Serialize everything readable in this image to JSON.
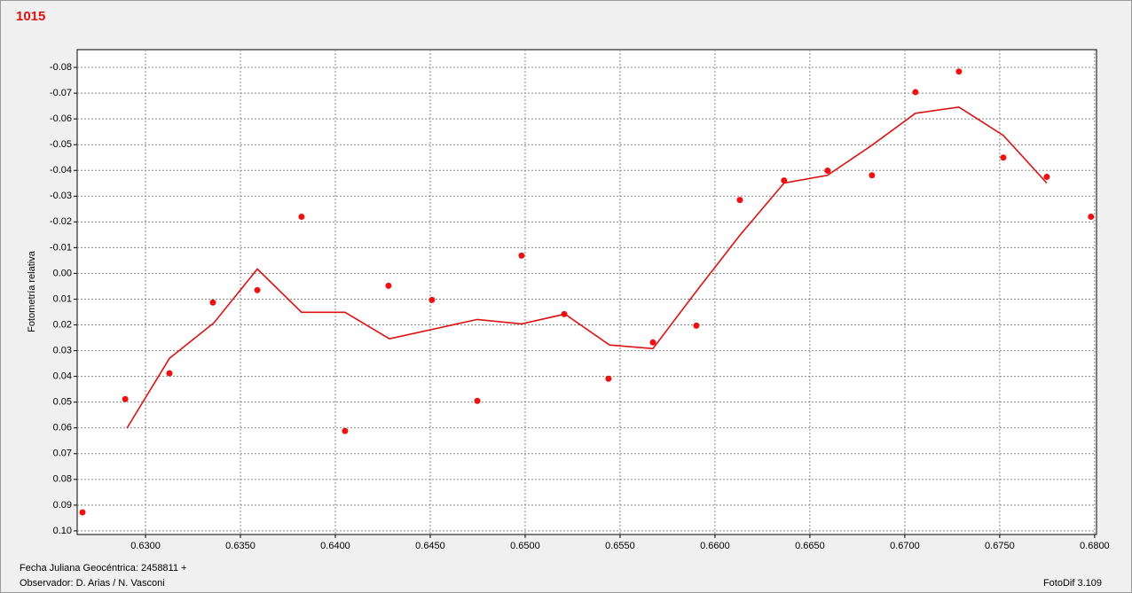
{
  "chart_data": {
    "type": "scatter",
    "title": "1015",
    "ylabel": "Fotometría relativa",
    "xlabel": "Fecha Juliana Geocéntrica: 2458811 +",
    "observer": "Observador: D. Arias / N. Vasconi",
    "software": "FotoDif 3.109",
    "xlim": [
      0.6264,
      0.6801
    ],
    "ylim": [
      0.1014,
      -0.0869
    ],
    "grid": true,
    "xticks": [
      {
        "value": 0.63,
        "label": "0.6300"
      },
      {
        "value": 0.635,
        "label": "0.6350"
      },
      {
        "value": 0.64,
        "label": "0.6400"
      },
      {
        "value": 0.645,
        "label": "0.6450"
      },
      {
        "value": 0.65,
        "label": "0.6500"
      },
      {
        "value": 0.655,
        "label": "0.6550"
      },
      {
        "value": 0.66,
        "label": "0.6600"
      },
      {
        "value": 0.665,
        "label": "0.6650"
      },
      {
        "value": 0.67,
        "label": "0.6700"
      },
      {
        "value": 0.675,
        "label": "0.6750"
      },
      {
        "value": 0.68,
        "label": "0.6800"
      }
    ],
    "yticks": [
      -0.08,
      -0.07,
      -0.06,
      -0.05,
      -0.04,
      -0.03,
      -0.02,
      -0.01,
      {
        "value": 0,
        "label": "0.00"
      },
      0.01,
      0.02,
      0.03,
      0.04,
      0.05,
      0.06,
      0.07,
      0.08,
      0.09,
      {
        "value": 0.1,
        "label": "0.10"
      }
    ],
    "series": [
      {
        "style": "markers",
        "color": "#ee1111",
        "x": [
          0.62668,
          0.62893,
          0.63126,
          0.63355,
          0.63589,
          0.63822,
          0.64051,
          0.6428,
          0.64509,
          0.64748,
          0.64981,
          0.65206,
          0.65439,
          0.65673,
          0.65902,
          0.66131,
          0.66364,
          0.66593,
          0.66827,
          0.67056,
          0.67285,
          0.67519,
          0.67748,
          0.67981
        ],
        "values": [
          0.0928,
          0.0488,
          0.0388,
          0.0113,
          0.0065,
          -0.022,
          0.0612,
          0.0048,
          0.0103,
          0.0495,
          -0.0069,
          0.0158,
          0.0409,
          0.0268,
          0.0203,
          -0.0285,
          -0.0361,
          -0.0399,
          -0.0381,
          -0.0704,
          -0.0784,
          -0.045,
          -0.0375,
          -0.022
        ]
      },
      {
        "style": "line",
        "color": "#dd1111",
        "x": [
          0.62902,
          0.63126,
          0.6336,
          0.63589,
          0.63822,
          0.64051,
          0.64285,
          0.64748,
          0.64981,
          0.6521,
          0.65444,
          0.65673,
          0.65902,
          0.66131,
          0.66364,
          0.66593,
          0.66827,
          0.67056,
          0.67285,
          0.67519,
          0.67748
        ],
        "values": [
          0.0601,
          0.033,
          0.0192,
          -0.0017,
          0.0151,
          0.0151,
          0.0254,
          0.0179,
          0.0196,
          0.0158,
          0.0278,
          0.0292,
          0.0069,
          -0.0148,
          -0.0351,
          -0.0381,
          -0.0498,
          -0.0622,
          -0.0646,
          -0.0536,
          -0.0351
        ]
      }
    ]
  }
}
